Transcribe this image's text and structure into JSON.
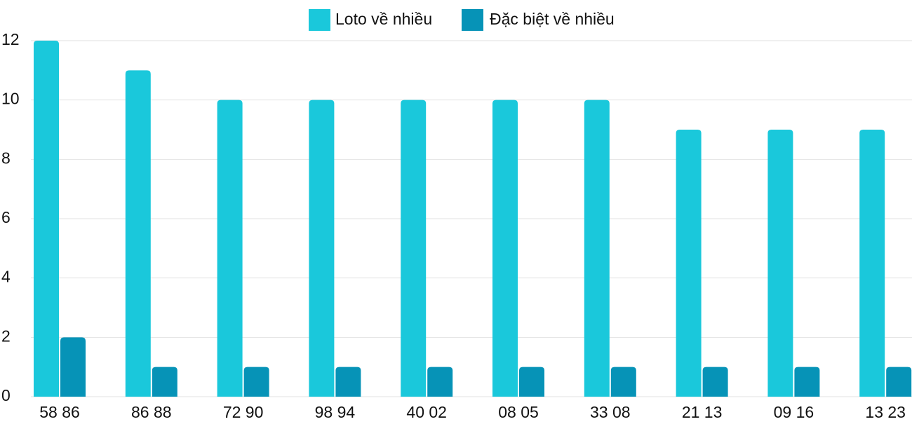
{
  "chart_data": {
    "type": "bar",
    "categories": [
      "58 86",
      "86 88",
      "72 90",
      "98 94",
      "40 02",
      "08 05",
      "33 08",
      "21 13",
      "09 16",
      "13 23"
    ],
    "series": [
      {
        "name": "Loto về nhiều",
        "color": "#1ac8db",
        "values": [
          12,
          11,
          10,
          10,
          10,
          10,
          10,
          9,
          9,
          9
        ]
      },
      {
        "name": "Đặc biệt về nhiều",
        "color": "#0693b7",
        "values": [
          2,
          1,
          1,
          1,
          1,
          1,
          1,
          1,
          1,
          1
        ]
      }
    ],
    "ylim": [
      0,
      12
    ],
    "yticks": [
      0,
      2,
      4,
      6,
      8,
      10,
      12
    ],
    "grid": true,
    "legend": "top"
  }
}
